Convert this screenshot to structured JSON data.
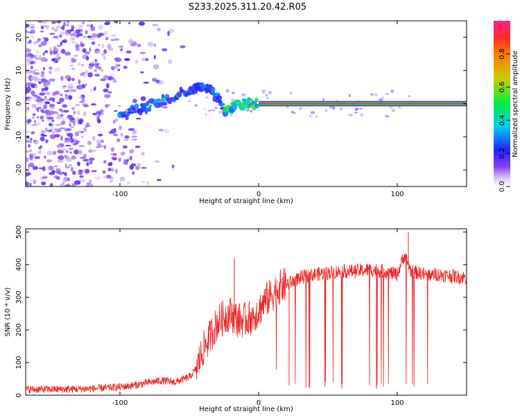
{
  "title": "S233.2025.311.20.42.R05",
  "colors": {
    "snr_line": "#ee2222",
    "scatter_base": "#7b2bf0"
  },
  "chart_data": [
    {
      "type": "heatmap",
      "title": "S233.2025.311.20.42.R05",
      "xlabel": "Height of straight line (km)",
      "ylabel": "Frequency (Hz)",
      "xlim": [
        -168,
        150
      ],
      "ylim": [
        -25,
        25
      ],
      "xticks": [
        -100,
        0,
        100
      ],
      "yticks": [
        -20,
        -10,
        0,
        10,
        20
      ],
      "colorbar": {
        "label": "Normalized spectral amplitude",
        "range": [
          0,
          1
        ],
        "ticks": [
          0.0,
          0.2,
          0.4,
          0.6,
          0.8
        ]
      },
      "features": [
        {
          "name": "noise region",
          "x_range": [
            -168,
            -50
          ],
          "freq_range": [
            -25,
            25
          ],
          "amplitude": 0.1
        },
        {
          "name": "rising signal",
          "x": [
            -100,
            -90,
            -80,
            -70,
            -60,
            -50,
            -45,
            -40,
            -35,
            -30,
            -25
          ],
          "freq": [
            -4,
            -2,
            -1,
            1,
            2.5,
            4,
            5,
            5,
            4,
            2,
            -1
          ],
          "amplitude": 0.25
        },
        {
          "name": "transition",
          "x": [
            -25,
            -20,
            -15,
            -10,
            -5,
            0
          ],
          "freq": [
            -2,
            -1.5,
            -0.5,
            0,
            0,
            0
          ],
          "amplitude": 0.45
        },
        {
          "name": "strong carrier",
          "x_range": [
            0,
            150
          ],
          "freq": 0,
          "amplitude": 0.9
        }
      ]
    },
    {
      "type": "line",
      "xlabel": "Height of straight line (km)",
      "ylabel": "SNR (10 * v/v)",
      "xlim": [
        -168,
        150
      ],
      "ylim": [
        0,
        510
      ],
      "xticks": [
        -100,
        0,
        100
      ],
      "yticks": [
        0,
        100,
        200,
        300,
        400,
        500
      ],
      "series": [
        {
          "name": "SNR",
          "x": [
            -168,
            -140,
            -120,
            -100,
            -90,
            -80,
            -70,
            -60,
            -50,
            -45,
            -40,
            -35,
            -30,
            -25,
            -20,
            -15,
            -10,
            -5,
            0,
            5,
            10,
            15,
            20,
            25,
            30,
            40,
            50,
            60,
            70,
            80,
            90,
            100,
            105,
            110,
            120,
            130,
            140,
            150
          ],
          "values": [
            18,
            18,
            20,
            25,
            30,
            38,
            45,
            40,
            55,
            80,
            140,
            180,
            220,
            240,
            250,
            230,
            230,
            240,
            260,
            290,
            310,
            330,
            340,
            350,
            360,
            370,
            375,
            380,
            380,
            385,
            380,
            370,
            430,
            380,
            370,
            370,
            365,
            360
          ]
        }
      ],
      "spikes": [
        {
          "x": -17.5,
          "value": 420,
          "type": "up"
        },
        {
          "x": 108,
          "value": 500,
          "type": "up"
        },
        {
          "x": 22,
          "value": 30,
          "type": "down"
        },
        {
          "x": 60,
          "value": 20,
          "type": "down"
        },
        {
          "x": 85,
          "value": 20,
          "type": "down"
        }
      ]
    }
  ]
}
